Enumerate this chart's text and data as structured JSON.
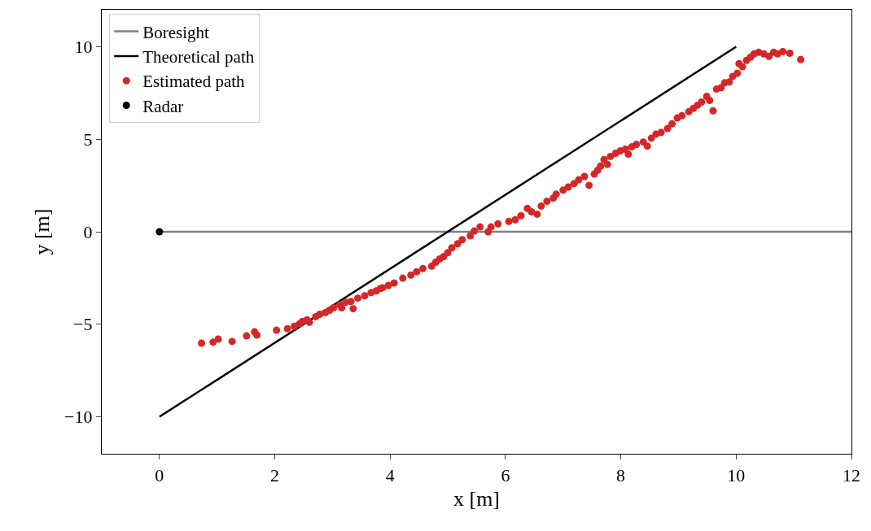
{
  "chart_data": {
    "type": "scatter",
    "xlabel": "x [m]",
    "ylabel": "y [m]",
    "xlim": [
      -1,
      12
    ],
    "xticks": [
      0,
      2,
      4,
      6,
      8,
      10,
      12
    ],
    "ylim": [
      -12,
      12
    ],
    "yticks": [
      {
        "value": -10,
        "label": "−10"
      },
      {
        "value": -5,
        "label": "−5"
      },
      0,
      5,
      10
    ],
    "grid": false,
    "legend": "top left",
    "series": [
      {
        "name": "Boresight",
        "type": "line",
        "color": "#808080",
        "marker": "none",
        "x": [
          0,
          12
        ],
        "values": [
          0,
          0
        ]
      },
      {
        "name": "Theoretical path",
        "type": "line",
        "color": "#000000",
        "marker": "none",
        "x": [
          0,
          10
        ],
        "values": [
          -10,
          10
        ]
      },
      {
        "name": "Estimated path",
        "color": "#d62728",
        "marker": "circle",
        "x": [
          0.73,
          0.93,
          1.02,
          1.26,
          1.51,
          1.65,
          1.69,
          2.03,
          2.22,
          2.34,
          2.43,
          2.48,
          2.56,
          2.6,
          2.71,
          2.78,
          2.88,
          2.95,
          3.02,
          3.13,
          3.16,
          3.23,
          3.32,
          3.36,
          3.44,
          3.56,
          3.67,
          3.76,
          3.83,
          3.87,
          3.97,
          4.07,
          4.22,
          4.36,
          4.46,
          4.57,
          4.72,
          4.79,
          4.86,
          4.93,
          5.0,
          5.07,
          5.17,
          5.25,
          5.39,
          5.46,
          5.56,
          5.7,
          5.75,
          5.87,
          6.06,
          6.17,
          6.27,
          6.38,
          6.45,
          6.55,
          6.62,
          6.72,
          6.83,
          6.88,
          7.0,
          7.09,
          7.19,
          7.27,
          7.37,
          7.45,
          7.54,
          7.6,
          7.65,
          7.71,
          7.77,
          7.82,
          7.91,
          7.99,
          8.08,
          8.13,
          8.19,
          8.27,
          8.39,
          8.46,
          8.53,
          8.61,
          8.7,
          8.81,
          8.89,
          8.98,
          9.06,
          9.18,
          9.26,
          9.33,
          9.4,
          9.49,
          9.54,
          9.6,
          9.66,
          9.74,
          9.8,
          9.88,
          9.94,
          10.02,
          10.05,
          10.11,
          10.18,
          10.25,
          10.31,
          10.39,
          10.48,
          10.57,
          10.65,
          10.72,
          10.81,
          10.93,
          11.12
        ],
        "values": [
          -6.02,
          -5.97,
          -5.8,
          -5.93,
          -5.63,
          -5.41,
          -5.58,
          -5.32,
          -5.24,
          -5.11,
          -4.98,
          -4.85,
          -4.76,
          -4.89,
          -4.59,
          -4.46,
          -4.37,
          -4.24,
          -4.11,
          -3.94,
          -4.11,
          -3.81,
          -3.77,
          -4.16,
          -3.59,
          -3.46,
          -3.29,
          -3.2,
          -3.07,
          -3.03,
          -2.9,
          -2.77,
          -2.51,
          -2.34,
          -2.16,
          -1.99,
          -1.86,
          -1.65,
          -1.47,
          -1.34,
          -1.13,
          -0.87,
          -0.65,
          -0.43,
          -0.22,
          0.04,
          0.26,
          0.0,
          0.26,
          0.43,
          0.56,
          0.65,
          0.87,
          1.26,
          1.08,
          0.95,
          1.39,
          1.65,
          1.82,
          2.03,
          2.25,
          2.42,
          2.6,
          2.81,
          2.99,
          2.51,
          3.12,
          3.33,
          3.55,
          3.9,
          3.64,
          4.07,
          4.24,
          4.37,
          4.46,
          4.2,
          4.59,
          4.72,
          4.85,
          4.63,
          5.06,
          5.28,
          5.37,
          5.58,
          5.84,
          6.15,
          6.28,
          6.49,
          6.67,
          6.84,
          7.01,
          7.32,
          7.1,
          6.54,
          7.71,
          7.79,
          8.05,
          8.1,
          8.4,
          8.57,
          9.09,
          8.92,
          9.26,
          9.44,
          9.61,
          9.7,
          9.61,
          9.48,
          9.7,
          9.61,
          9.74,
          9.65,
          9.31
        ]
      },
      {
        "name": "Radar",
        "color": "#000000",
        "marker": "circle",
        "x": [
          0
        ],
        "values": [
          0
        ]
      }
    ]
  }
}
